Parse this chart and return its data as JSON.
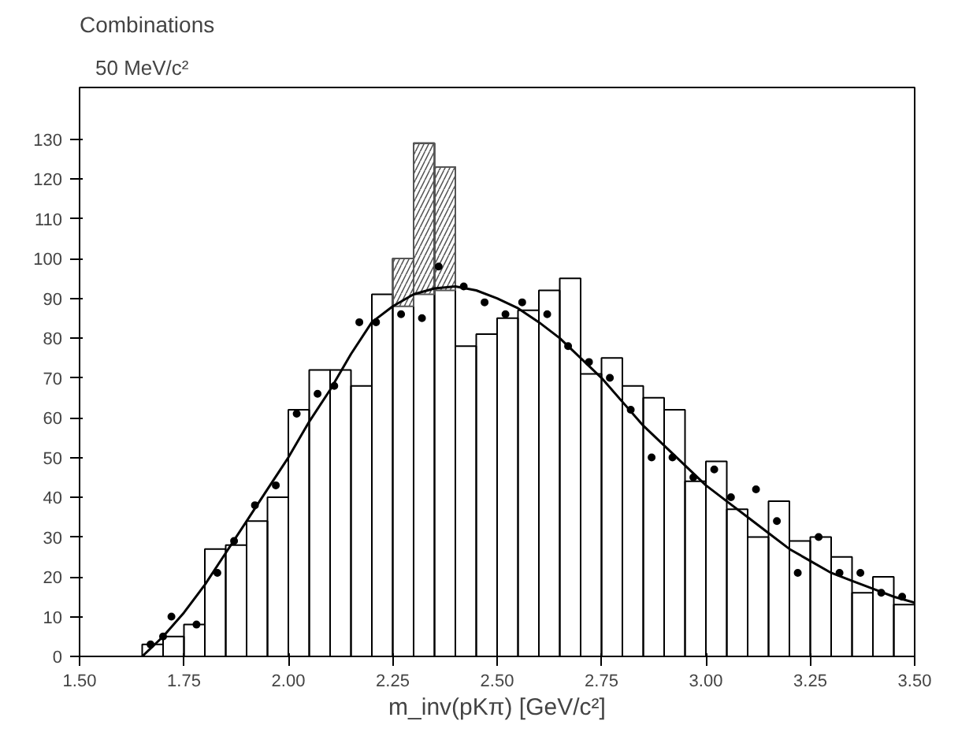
{
  "chart_data": {
    "type": "histogram",
    "title": "Combinations",
    "subtitle": "50 MeV/c²",
    "xlabel": "m_inv(pKπ) [GeV/c²]",
    "bins": [
      1.65,
      1.7,
      1.75,
      1.8,
      1.85,
      1.9,
      1.95,
      2.0,
      2.05,
      2.1,
      2.15,
      2.2,
      2.25,
      2.3,
      2.35,
      2.4,
      2.45,
      2.5,
      2.55,
      2.6,
      2.65,
      2.7,
      2.75,
      2.8,
      2.85,
      2.9,
      2.95,
      3.0,
      3.05,
      3.1,
      3.15,
      3.2,
      3.25,
      3.3,
      3.35,
      3.4,
      3.45,
      3.5
    ],
    "values": [
      3,
      5,
      8,
      27,
      28,
      34,
      40,
      62,
      72,
      72,
      68,
      91,
      100,
      129,
      123,
      78,
      81,
      85,
      87,
      92,
      95,
      71,
      75,
      68,
      65,
      62,
      44,
      49,
      37,
      30,
      39,
      29,
      30,
      25,
      16,
      20,
      13
    ],
    "color": "#000000",
    "series": [
      {
        "type": "bar",
        "color": "#555555",
        "x": [
          2.275,
          2.325,
          2.375
        ],
        "base": [
          88,
          91,
          92
        ],
        "values": [
          12,
          38,
          31
        ]
      },
      {
        "type": "scatter",
        "color": "#000000",
        "marker": "circle",
        "x": [
          1.67,
          1.7,
          1.72,
          1.78,
          1.83,
          1.87,
          1.92,
          1.97,
          2.02,
          2.07,
          2.11,
          2.17,
          2.21,
          2.27,
          2.32,
          2.36,
          2.42,
          2.47,
          2.52,
          2.56,
          2.62,
          2.67,
          2.72,
          2.77,
          2.82,
          2.87,
          2.92,
          2.97,
          3.02,
          3.06,
          3.12,
          3.17,
          3.22,
          3.27,
          3.32,
          3.37,
          3.42,
          3.47
        ],
        "values": [
          3,
          5,
          10,
          8,
          21,
          29,
          38,
          43,
          61,
          66,
          68,
          84,
          84,
          86,
          85,
          98,
          93,
          89,
          86,
          89,
          86,
          78,
          74,
          70,
          62,
          50,
          50,
          45,
          47,
          40,
          42,
          34,
          21,
          30,
          21,
          21,
          16,
          15
        ]
      },
      {
        "type": "line",
        "color": "#000000",
        "x": [
          1.65,
          1.7,
          1.75,
          1.8,
          1.85,
          1.9,
          1.95,
          2.0,
          2.05,
          2.1,
          2.15,
          2.2,
          2.25,
          2.3,
          2.35,
          2.4,
          2.45,
          2.5,
          2.55,
          2.6,
          2.65,
          2.7,
          2.75,
          2.8,
          2.85,
          2.9,
          2.95,
          3.0,
          3.05,
          3.1,
          3.15,
          3.2,
          3.25,
          3.3,
          3.35,
          3.4,
          3.45,
          3.5
        ],
        "values": [
          0,
          5,
          11,
          18,
          26,
          34,
          42,
          50,
          59,
          67,
          76,
          84,
          88,
          91,
          92.5,
          93,
          92,
          90,
          87.5,
          84,
          80,
          75,
          70,
          64,
          58,
          53,
          48,
          43,
          39,
          35,
          31,
          27,
          24,
          21,
          19,
          17,
          15,
          13.5
        ]
      }
    ],
    "xlim": [
      1.5,
      3.5
    ],
    "ylim": [
      0,
      143
    ],
    "xticks": [
      {
        "value": 1.5,
        "label": "1.50"
      },
      {
        "value": 1.75,
        "label": "1.75"
      },
      {
        "value": 2.0,
        "label": "2.00"
      },
      {
        "value": 2.25,
        "label": "2.25"
      },
      {
        "value": 2.5,
        "label": "2.50"
      },
      {
        "value": 2.75,
        "label": "2.75"
      },
      {
        "value": 3.0,
        "label": "3.00"
      },
      {
        "value": 3.25,
        "label": "3.25"
      },
      {
        "value": 3.5,
        "label": "3.50"
      }
    ],
    "yticks": [
      0,
      10,
      20,
      30,
      40,
      50,
      60,
      70,
      80,
      90,
      100,
      110,
      120,
      130
    ],
    "grid": false
  }
}
